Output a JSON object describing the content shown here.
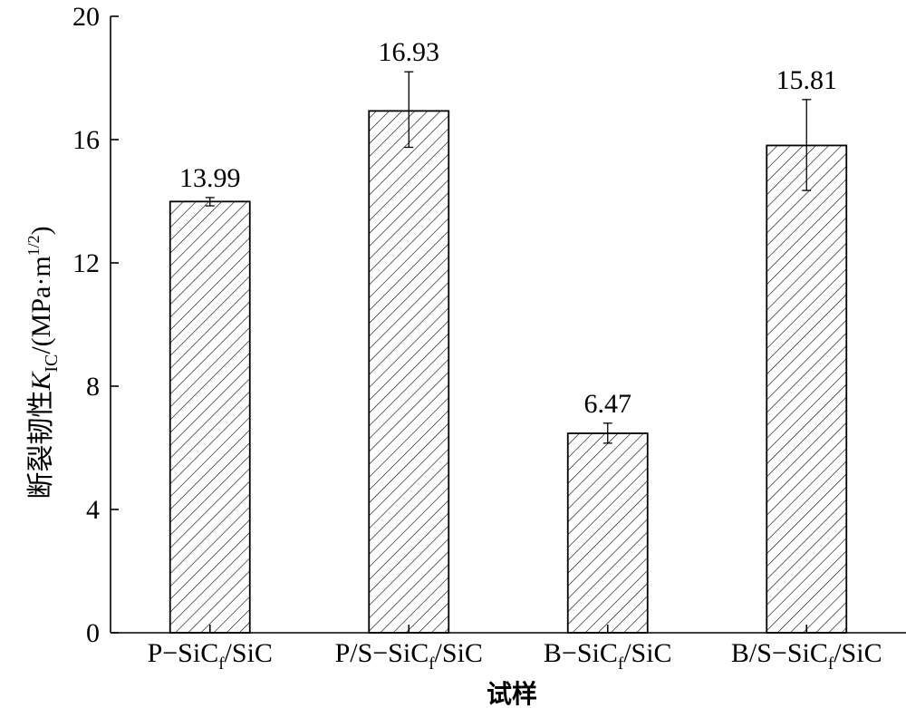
{
  "chart_data": {
    "type": "bar",
    "categories": [
      {
        "main": "P−SiC",
        "sub": "f",
        "tail": "/SiC"
      },
      {
        "main": "P/S−SiC",
        "sub": "f",
        "tail": "/SiC"
      },
      {
        "main": "B−SiC",
        "sub": "f",
        "tail": "/SiC"
      },
      {
        "main": "B/S−SiC",
        "sub": "f",
        "tail": "/SiC"
      }
    ],
    "values": [
      13.99,
      16.93,
      6.47,
      15.81
    ],
    "value_labels": [
      "13.99",
      "16.93",
      "6.47",
      "15.81"
    ],
    "error_low": [
      13.85,
      15.75,
      6.15,
      14.35
    ],
    "error_high": [
      14.12,
      18.2,
      6.8,
      17.3
    ],
    "ylim": [
      0,
      20
    ],
    "yticks": [
      0,
      4,
      8,
      12,
      16,
      20
    ],
    "ylabel": {
      "prefix": "断裂韧性",
      "symbol": "K",
      "sub": "IC",
      "unit_open": "/(MPa·m",
      "sup": "1/2",
      "unit_close": ")"
    },
    "xlabel": "试样",
    "bar_fill": "hatched",
    "grid": false,
    "legend": "none"
  }
}
